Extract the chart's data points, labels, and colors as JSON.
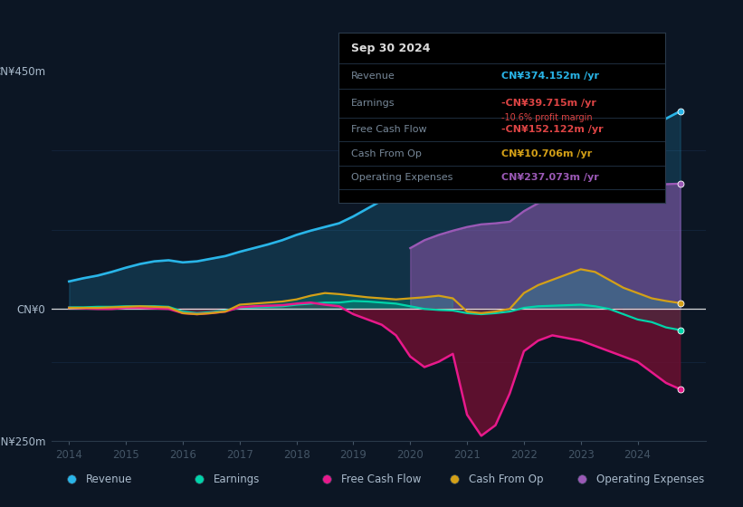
{
  "background_color": "#0c1624",
  "plot_bg_color": "#0c1624",
  "years": [
    2014.0,
    2014.25,
    2014.5,
    2014.75,
    2015.0,
    2015.25,
    2015.5,
    2015.75,
    2016.0,
    2016.25,
    2016.5,
    2016.75,
    2017.0,
    2017.25,
    2017.5,
    2017.75,
    2018.0,
    2018.25,
    2018.5,
    2018.75,
    2019.0,
    2019.25,
    2019.5,
    2019.75,
    2020.0,
    2020.25,
    2020.5,
    2020.75,
    2021.0,
    2021.25,
    2021.5,
    2021.75,
    2022.0,
    2022.25,
    2022.5,
    2022.75,
    2023.0,
    2023.25,
    2023.5,
    2023.75,
    2024.0,
    2024.25,
    2024.5,
    2024.75
  ],
  "revenue": [
    52,
    58,
    63,
    70,
    78,
    85,
    90,
    92,
    88,
    90,
    95,
    100,
    108,
    115,
    122,
    130,
    140,
    148,
    155,
    162,
    175,
    190,
    205,
    220,
    240,
    255,
    265,
    262,
    255,
    250,
    255,
    280,
    340,
    390,
    420,
    445,
    430,
    400,
    370,
    345,
    335,
    340,
    360,
    374
  ],
  "earnings": [
    3,
    3,
    4,
    4,
    5,
    5,
    5,
    4,
    -5,
    -8,
    -6,
    -3,
    2,
    3,
    4,
    5,
    8,
    10,
    12,
    12,
    15,
    14,
    12,
    10,
    5,
    0,
    -2,
    -3,
    -8,
    -10,
    -8,
    -5,
    2,
    5,
    6,
    7,
    8,
    5,
    0,
    -10,
    -20,
    -25,
    -35,
    -40
  ],
  "free_cash_flow": [
    2,
    1,
    0,
    0,
    2,
    2,
    1,
    0,
    -8,
    -10,
    -8,
    -5,
    3,
    5,
    6,
    7,
    10,
    12,
    8,
    5,
    -10,
    -20,
    -30,
    -50,
    -90,
    -110,
    -100,
    -85,
    -200,
    -240,
    -220,
    -160,
    -80,
    -60,
    -50,
    -55,
    -60,
    -70,
    -80,
    -90,
    -100,
    -120,
    -140,
    -152
  ],
  "cash_from_op": [
    2,
    2,
    2,
    3,
    4,
    5,
    4,
    3,
    -8,
    -10,
    -8,
    -5,
    8,
    10,
    12,
    14,
    18,
    25,
    30,
    28,
    25,
    22,
    20,
    18,
    20,
    22,
    25,
    20,
    -5,
    -8,
    -5,
    0,
    30,
    45,
    55,
    65,
    75,
    70,
    55,
    40,
    30,
    20,
    15,
    11
  ],
  "op_expenses": [
    0,
    0,
    0,
    0,
    0,
    0,
    0,
    0,
    0,
    0,
    0,
    0,
    0,
    0,
    0,
    0,
    0,
    0,
    0,
    0,
    0,
    0,
    0,
    0,
    115,
    130,
    140,
    148,
    155,
    160,
    162,
    165,
    185,
    200,
    210,
    215,
    220,
    225,
    228,
    230,
    232,
    234,
    236,
    237
  ],
  "revenue_color": "#29b5e8",
  "earnings_color": "#00d4aa",
  "fcf_color": "#e8198b",
  "cash_op_color": "#d4a017",
  "op_exp_color": "#9b59b6",
  "ylim_top": 450,
  "ylim_bottom": -250,
  "xticks": [
    2014,
    2015,
    2016,
    2017,
    2018,
    2019,
    2020,
    2021,
    2022,
    2023,
    2024
  ],
  "info_box": {
    "date": "Sep 30 2024",
    "revenue_val": "CN¥374.152m",
    "earnings_val": "-CN¥39.715m",
    "profit_margin": "-10.6%",
    "fcf_val": "-CN¥152.122m",
    "cash_op_val": "CN¥10.706m",
    "op_exp_val": "CN¥237.073m"
  },
  "legend_items": [
    {
      "label": "Revenue",
      "color": "#29b5e8"
    },
    {
      "label": "Earnings",
      "color": "#00d4aa"
    },
    {
      "label": "Free Cash Flow",
      "color": "#e8198b"
    },
    {
      "label": "Cash From Op",
      "color": "#d4a017"
    },
    {
      "label": "Operating Expenses",
      "color": "#9b59b6"
    }
  ]
}
